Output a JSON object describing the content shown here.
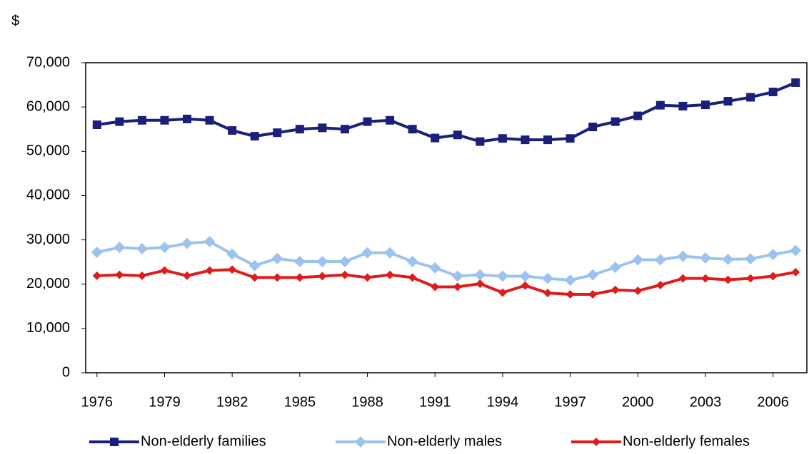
{
  "chart_data": {
    "type": "line",
    "y_label": "$",
    "x": [
      1976,
      1977,
      1978,
      1979,
      1980,
      1981,
      1982,
      1983,
      1984,
      1985,
      1986,
      1987,
      1988,
      1989,
      1990,
      1991,
      1992,
      1993,
      1994,
      1995,
      1996,
      1997,
      1998,
      1999,
      2000,
      2001,
      2002,
      2003,
      2004,
      2005,
      2006,
      2007
    ],
    "xlim": [
      1975.5,
      2007.5
    ],
    "xticks": [
      1976,
      1979,
      1982,
      1985,
      1988,
      1991,
      1994,
      1997,
      2000,
      2003,
      2006
    ],
    "ylim": [
      0,
      70000
    ],
    "yticks": [
      0,
      {
        "value": 10000,
        "label": "10,000"
      },
      {
        "value": 20000,
        "label": "20,000"
      },
      {
        "value": 30000,
        "label": "30,000"
      },
      {
        "value": 40000,
        "label": "40,000"
      },
      {
        "value": 50000,
        "label": "50,000"
      },
      {
        "value": 60000,
        "label": "60,000"
      },
      {
        "value": 70000,
        "label": "70,000"
      }
    ],
    "grid": false,
    "legend": "bottom",
    "series": [
      {
        "name": "Non-elderly families",
        "color": "#1a1f7a",
        "marker": "square",
        "values": [
          56000,
          56700,
          57000,
          57000,
          57300,
          57000,
          54700,
          53400,
          54200,
          55000,
          55300,
          55000,
          56700,
          57000,
          55000,
          53000,
          53700,
          52200,
          52900,
          52600,
          52600,
          52900,
          55500,
          56700,
          58000,
          60400,
          60200,
          60500,
          61300,
          62200,
          63400,
          65500
        ]
      },
      {
        "name": "Non-elderly males",
        "color": "#9cc3ee",
        "marker": "diamond",
        "values": [
          27200,
          28300,
          28000,
          28300,
          29200,
          29600,
          26800,
          24200,
          25800,
          25100,
          25100,
          25100,
          27100,
          27100,
          25100,
          23700,
          21800,
          22100,
          21800,
          21800,
          21300,
          20900,
          22100,
          23800,
          25500,
          25500,
          26300,
          25900,
          25600,
          25700,
          26700,
          27600
        ]
      },
      {
        "name": "Non-elderly females",
        "color": "#e01b1b",
        "marker": "diamond",
        "values": [
          21900,
          22100,
          21900,
          23100,
          21900,
          23100,
          23300,
          21500,
          21500,
          21500,
          21800,
          22100,
          21500,
          22100,
          21500,
          19400,
          19400,
          20100,
          18100,
          19700,
          18000,
          17700,
          17700,
          18700,
          18500,
          19800,
          21300,
          21300,
          21000,
          21300,
          21800,
          22700
        ]
      }
    ]
  }
}
